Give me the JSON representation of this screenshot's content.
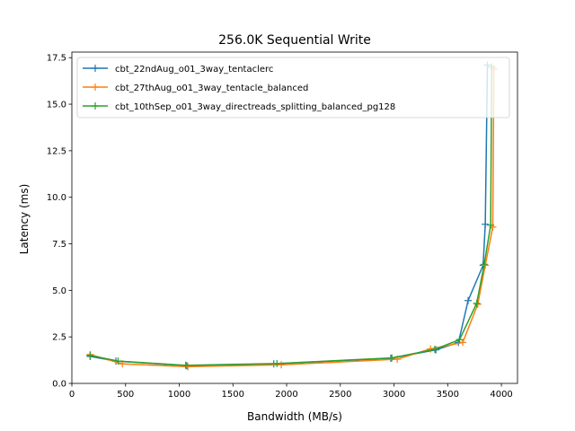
{
  "chart_data": {
    "type": "line",
    "title": "256.0K  Sequential Write",
    "xlabel": "Bandwidth (MB/s)",
    "ylabel": "Latency (ms)",
    "xlim": [
      0,
      4150
    ],
    "ylim": [
      0,
      17.8
    ],
    "xticks": [
      0,
      500,
      1000,
      1500,
      2000,
      2500,
      3000,
      3500,
      4000
    ],
    "yticks": [
      0.0,
      2.5,
      5.0,
      7.5,
      10.0,
      12.5,
      15.0,
      17.5
    ],
    "xtick_labels": [
      "0",
      "500",
      "1000",
      "1500",
      "2000",
      "2500",
      "3000",
      "3500",
      "4000"
    ],
    "ytick_labels": [
      "0.0",
      "2.5",
      "5.0",
      "7.5",
      "10.0",
      "12.5",
      "15.0",
      "17.5"
    ],
    "grid": false,
    "legend_position": "upper-left",
    "marker": "plus",
    "series": [
      {
        "name": "cbt_22ndAug_o01_3way_tentaclerc",
        "color": "#1f77b4",
        "x": [
          170,
          410,
          1070,
          1880,
          2970,
          3390,
          3600,
          3690,
          3830,
          3850,
          3870
        ],
        "y": [
          1.45,
          1.2,
          0.95,
          1.05,
          1.35,
          1.8,
          2.2,
          4.45,
          6.35,
          8.55,
          17.1
        ]
      },
      {
        "name": "cbt_27thAug_o01_3way_tentacle_balanced",
        "color": "#ff7f0e",
        "x": [
          170,
          470,
          1080,
          1950,
          3030,
          3340,
          3640,
          3780,
          3850,
          3920,
          3930
        ],
        "y": [
          1.55,
          1.05,
          0.9,
          1.0,
          1.3,
          1.85,
          2.2,
          4.25,
          6.35,
          8.4,
          16.9
        ]
      },
      {
        "name": "cbt_10thSep_o01_3way_directreads_splitting_balanced_pg128",
        "color": "#2ca02c",
        "x": [
          170,
          430,
          1060,
          1910,
          2980,
          3380,
          3610,
          3770,
          3840,
          3900,
          3910
        ],
        "y": [
          1.5,
          1.2,
          0.97,
          1.07,
          1.37,
          1.83,
          2.35,
          4.3,
          6.4,
          8.5,
          17.0
        ]
      }
    ]
  }
}
